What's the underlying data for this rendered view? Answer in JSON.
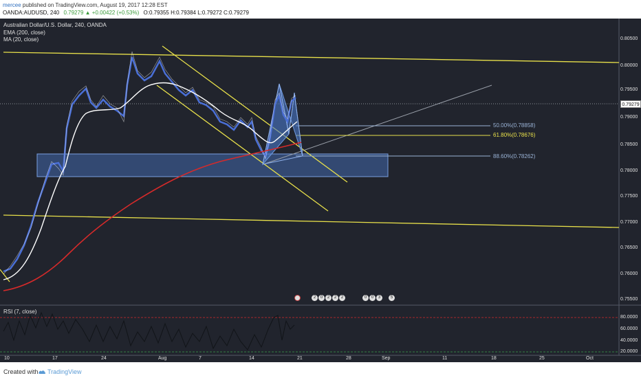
{
  "header": {
    "publisher": "mercee",
    "published_text": "published on TradingView.com, August 19, 2017 12:28 EST",
    "symbol": "OANDA:AUDUSD, 240",
    "change": "0.79279 ▲ +0.00422 (+0.53%)",
    "ohlc": "O:0.79355 H:0.79384 L:0.79272 C:0.79279"
  },
  "legend": {
    "title": "Australian Dollar/U.S. Dollar, 240, OANDA",
    "ema": "EMA (200, close)",
    "ma": "MA (20, close)",
    "rsi": "RSI (7, close)"
  },
  "price_axis": [
    "0.80500",
    "0.80000",
    "0.79500",
    "0.79000",
    "0.78500",
    "0.78000",
    "0.77500",
    "0.77000",
    "0.76500",
    "0.76000",
    "0.75500"
  ],
  "rsi_axis": [
    "80.0000",
    "60.0000",
    "40.0000",
    "20.0000"
  ],
  "time_axis": [
    "10",
    "17",
    "24",
    "Aug",
    "7",
    "14",
    "21",
    "28",
    "Sep",
    "11",
    "18",
    "25",
    "Oct"
  ],
  "last_price": "0.79279",
  "fib_levels": [
    {
      "label": "50.00%(0.78858)",
      "color": "#9ab3d6"
    },
    {
      "label": "61.80%(0.78676)",
      "color": "#e8e04a"
    },
    {
      "label": "88.60%(0.78262)",
      "color": "#9ab3d6"
    }
  ],
  "event_markers": [
    "2",
    "0",
    "2",
    "2",
    "2",
    "0",
    "0",
    "3",
    "5"
  ],
  "footer": {
    "created_label": "Created with",
    "brand": "TradingView"
  },
  "colors": {
    "background": "#21242d",
    "trendline": "#e8e04a",
    "ema": "#d62a2a",
    "ma": "#ffffff",
    "candle": "#4a6fd6",
    "zone": "#4a78c8"
  }
}
